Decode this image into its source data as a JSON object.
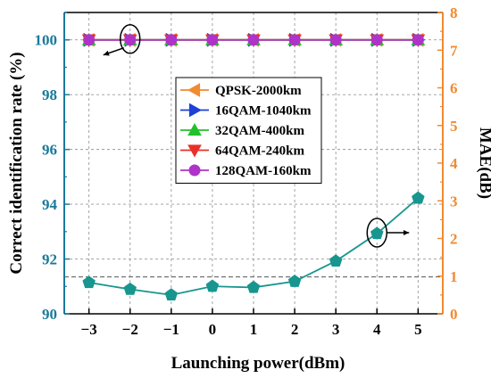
{
  "chart_data": {
    "type": "line",
    "x": [
      -3,
      -2,
      -1,
      0,
      1,
      2,
      3,
      4,
      5
    ],
    "xlabel": "Launching power(dBm)",
    "ylabel_left": "Correct identification rate (%)",
    "ylabel_right": "MAE(dB)",
    "xlim": [
      -3.6,
      5.6
    ],
    "ylim_left": [
      90,
      101
    ],
    "ylim_right": [
      0,
      8
    ],
    "xticks": [
      "−3",
      "−2",
      "−1",
      "0",
      "1",
      "2",
      "3",
      "4",
      "5"
    ],
    "yticks_left": [
      "90",
      "92",
      "94",
      "96",
      "98",
      "100"
    ],
    "yticks_right": [
      "0",
      "1",
      "2",
      "3",
      "4",
      "5",
      "6",
      "7",
      "8"
    ],
    "grid": true,
    "legend_position": "center",
    "series": [
      {
        "name": "QPSK-2000km",
        "axis": "left",
        "marker": "triangle-left",
        "color": "#f28a30",
        "values": [
          100,
          100,
          100,
          100,
          100,
          100,
          100,
          100,
          100
        ]
      },
      {
        "name": "16QAM-1040km",
        "axis": "left",
        "marker": "triangle-right",
        "color": "#1f3fd6",
        "values": [
          100,
          100,
          100,
          100,
          100,
          100,
          100,
          100,
          100
        ]
      },
      {
        "name": "32QAM-400km",
        "axis": "left",
        "marker": "triangle-up",
        "color": "#22c02a",
        "values": [
          100,
          100,
          100,
          100,
          100,
          100,
          100,
          100,
          100
        ]
      },
      {
        "name": "64QAM-240km",
        "axis": "left",
        "marker": "triangle-down",
        "color": "#e8302a",
        "values": [
          100,
          100,
          100,
          100,
          100,
          100,
          100,
          100,
          100
        ]
      },
      {
        "name": "128QAM-160km",
        "axis": "left",
        "marker": "circle",
        "color": "#b033c9",
        "values": [
          100,
          100,
          100,
          100,
          100,
          100,
          100,
          100,
          100
        ]
      },
      {
        "axis": "right",
        "marker": "pentagon",
        "color": "#17968f",
        "values": [
          0.83,
          0.65,
          0.5,
          0.73,
          0.7,
          0.86,
          1.4,
          2.13,
          3.07
        ]
      }
    ],
    "reference_line_right": 0.98,
    "annotations": [
      {
        "type": "ellipse-arrow",
        "x": -2,
        "axis": "left",
        "value": 100,
        "direction": "left"
      },
      {
        "type": "ellipse-arrow",
        "x": 4,
        "axis": "right",
        "value": 2.13,
        "direction": "right"
      }
    ]
  },
  "colors": {
    "left_axis": "#1a7a9a",
    "right_axis": "#f28a30",
    "grid": "#9a9a9a"
  }
}
